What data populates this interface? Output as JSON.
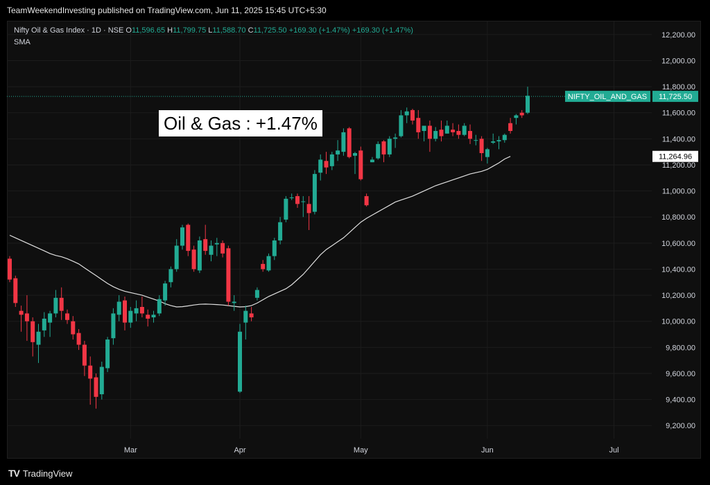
{
  "header": {
    "published_text": "TeamWeekendInvesting published on TradingView.com, Jun 11, 2025 15:45 UTC+5:30"
  },
  "legend": {
    "symbol": "Nifty Oil & Gas Index · 1D · NSE",
    "o_label": "O",
    "o_value": "11,596.65",
    "h_label": "H",
    "h_value": "11,799.75",
    "l_label": "L",
    "l_value": "11,588.70",
    "c_label": "C",
    "c_value": "11,725.50",
    "change": "+169.30 (+1.47%)",
    "change2": "+169.30 (+1.47%)",
    "indicator": "SMA"
  },
  "annotation": "Oil & Gas : +1.47%",
  "footer": {
    "brand": "TradingView",
    "logo": "TV"
  },
  "colors": {
    "up": "#22ab94",
    "down": "#f23645",
    "sma": "#e0e0e0",
    "grid": "#1c1c1c",
    "axis_text": "#d1d4dc"
  },
  "chart_data": {
    "type": "candlestick",
    "ylim": [
      9100,
      12300
    ],
    "y_ticks": [
      9200,
      9400,
      9600,
      9800,
      10000,
      10200,
      10400,
      10600,
      10800,
      11000,
      11200,
      11400,
      11600,
      11800,
      12000,
      12200
    ],
    "y_tick_labels": [
      "9,200.00",
      "9,400.00",
      "9,600.00",
      "9,800.00",
      "10,000.00",
      "10,200.00",
      "10,400.00",
      "10,600.00",
      "10,800.00",
      "11,000.00",
      "11,200.00",
      "11,400.00",
      "11,600.00",
      "11,800.00",
      "12,000.00",
      "12,200.00"
    ],
    "x_labels": [
      {
        "label": "Mar",
        "index": 21
      },
      {
        "label": "Apr",
        "index": 40
      },
      {
        "label": "May",
        "index": 61
      },
      {
        "label": "Jun",
        "index": 83
      },
      {
        "label": "Jul",
        "index": 105
      }
    ],
    "candles": [
      [
        10480,
        10500,
        10300,
        10320
      ],
      [
        10330,
        10350,
        10110,
        10140
      ],
      [
        10080,
        10120,
        9920,
        10050
      ],
      [
        10060,
        10200,
        9850,
        10000
      ],
      [
        10000,
        10030,
        9730,
        9840
      ],
      [
        9820,
        9980,
        9680,
        9920
      ],
      [
        9930,
        10070,
        9880,
        10020
      ],
      [
        9990,
        10080,
        9880,
        10060
      ],
      [
        10060,
        10240,
        10030,
        10180
      ],
      [
        10180,
        10260,
        10010,
        10080
      ],
      [
        10060,
        10090,
        9980,
        10010
      ],
      [
        10000,
        10040,
        9860,
        9900
      ],
      [
        9910,
        9940,
        9780,
        9820
      ],
      [
        9820,
        9850,
        9580,
        9660
      ],
      [
        9660,
        9730,
        9360,
        9560
      ],
      [
        9570,
        9600,
        9330,
        9420
      ],
      [
        9440,
        9690,
        9400,
        9650
      ],
      [
        9640,
        9880,
        9610,
        9860
      ],
      [
        9870,
        10100,
        9820,
        10060
      ],
      [
        10050,
        10200,
        10000,
        10150
      ],
      [
        10160,
        10190,
        9930,
        9990
      ],
      [
        9990,
        10110,
        9950,
        10080
      ],
      [
        10060,
        10160,
        10000,
        10100
      ],
      [
        10110,
        10190,
        10030,
        10060
      ],
      [
        10050,
        10090,
        9960,
        10020
      ],
      [
        10030,
        10080,
        9990,
        10050
      ],
      [
        10060,
        10200,
        10040,
        10170
      ],
      [
        10160,
        10310,
        10120,
        10290
      ],
      [
        10300,
        10420,
        10260,
        10400
      ],
      [
        10400,
        10630,
        10380,
        10580
      ],
      [
        10580,
        10740,
        10550,
        10720
      ],
      [
        10740,
        10750,
        10500,
        10540
      ],
      [
        10550,
        10580,
        10380,
        10400
      ],
      [
        10390,
        10650,
        10370,
        10620
      ],
      [
        10630,
        10740,
        10510,
        10540
      ],
      [
        10510,
        10620,
        10460,
        10580
      ],
      [
        10590,
        10640,
        10500,
        10600
      ],
      [
        10600,
        10620,
        10490,
        10520
      ],
      [
        10560,
        10580,
        10120,
        10150
      ],
      [
        10140,
        10200,
        10080,
        10150
      ],
      [
        9460,
        9980,
        9450,
        9920
      ],
      [
        9990,
        10120,
        9860,
        10080
      ],
      [
        10060,
        10110,
        10000,
        10030
      ],
      [
        10180,
        10260,
        10160,
        10240
      ],
      [
        10440,
        10470,
        10380,
        10400
      ],
      [
        10390,
        10520,
        10380,
        10500
      ],
      [
        10500,
        10640,
        10470,
        10620
      ],
      [
        10620,
        10800,
        10590,
        10760
      ],
      [
        10780,
        10960,
        10760,
        10940
      ],
      [
        10950,
        10980,
        10930,
        10950
      ],
      [
        10960,
        10980,
        10870,
        10900
      ],
      [
        10920,
        10960,
        10800,
        10920
      ],
      [
        10900,
        10960,
        10700,
        10830
      ],
      [
        10840,
        11160,
        10820,
        11130
      ],
      [
        11140,
        11280,
        11080,
        11240
      ],
      [
        11230,
        11300,
        11130,
        11180
      ],
      [
        11190,
        11300,
        11160,
        11280
      ],
      [
        11280,
        11390,
        11230,
        11310
      ],
      [
        11300,
        11480,
        11270,
        11450
      ],
      [
        11480,
        11490,
        11250,
        11260
      ],
      [
        11270,
        11300,
        11130,
        11290
      ],
      [
        11310,
        11340,
        11080,
        11090
      ],
      [
        10960,
        10980,
        10880,
        10890
      ],
      [
        11220,
        11260,
        11220,
        11240
      ],
      [
        11250,
        11380,
        11240,
        11360
      ],
      [
        11380,
        11390,
        11220,
        11280
      ],
      [
        11280,
        11420,
        11260,
        11400
      ],
      [
        11400,
        11440,
        11330,
        11410
      ],
      [
        11420,
        11620,
        11410,
        11580
      ],
      [
        11580,
        11640,
        11520,
        11610
      ],
      [
        11620,
        11630,
        11510,
        11540
      ],
      [
        11560,
        11620,
        11400,
        11450
      ],
      [
        11460,
        11490,
        11380,
        11500
      ],
      [
        11500,
        11540,
        11300,
        11400
      ],
      [
        11400,
        11490,
        11380,
        11460
      ],
      [
        11470,
        11540,
        11380,
        11420
      ],
      [
        11440,
        11540,
        11440,
        11500
      ],
      [
        11470,
        11520,
        11420,
        11450
      ],
      [
        11460,
        11510,
        11400,
        11430
      ],
      [
        11430,
        11520,
        11420,
        11500
      ],
      [
        11460,
        11510,
        11360,
        11400
      ],
      [
        11390,
        11430,
        11350,
        11390
      ],
      [
        11400,
        11420,
        11230,
        11290
      ],
      [
        11260,
        11330,
        11210,
        11320
      ],
      [
        11370,
        11440,
        11360,
        11380
      ],
      [
        11380,
        11420,
        11320,
        11390
      ],
      [
        11390,
        11440,
        11370,
        11430
      ],
      [
        11520,
        11560,
        11440,
        11460
      ],
      [
        11560,
        11590,
        11510,
        11580
      ],
      [
        11600,
        11620,
        11560,
        11580
      ],
      [
        11600,
        11800,
        11590,
        11730
      ]
    ],
    "sma": [
      10660,
      10640,
      10620,
      10600,
      10580,
      10560,
      10540,
      10520,
      10505,
      10495,
      10480,
      10460,
      10440,
      10410,
      10380,
      10350,
      10320,
      10290,
      10265,
      10245,
      10230,
      10220,
      10210,
      10200,
      10185,
      10170,
      10155,
      10135,
      10120,
      10110,
      10112,
      10118,
      10125,
      10130,
      10132,
      10130,
      10128,
      10125,
      10120,
      10115,
      10110,
      10112,
      10120,
      10140,
      10165,
      10190,
      10210,
      10230,
      10250,
      10280,
      10320,
      10360,
      10410,
      10460,
      10510,
      10550,
      10580,
      10610,
      10640,
      10680,
      10720,
      10760,
      10790,
      10815,
      10840,
      10865,
      10890,
      10915,
      10930,
      10945,
      10960,
      10980,
      11000,
      11020,
      11040,
      11055,
      11070,
      11085,
      11100,
      11115,
      11130,
      11140,
      11150,
      11165,
      11190,
      11215,
      11245,
      11265
    ],
    "last_price_label": "11,725.50",
    "last_price_value": 11725.5,
    "symbol_tag": "NIFTY_OIL_AND_GAS",
    "sma_value_label": "11,264.96",
    "sma_last_value": 11264.96
  }
}
